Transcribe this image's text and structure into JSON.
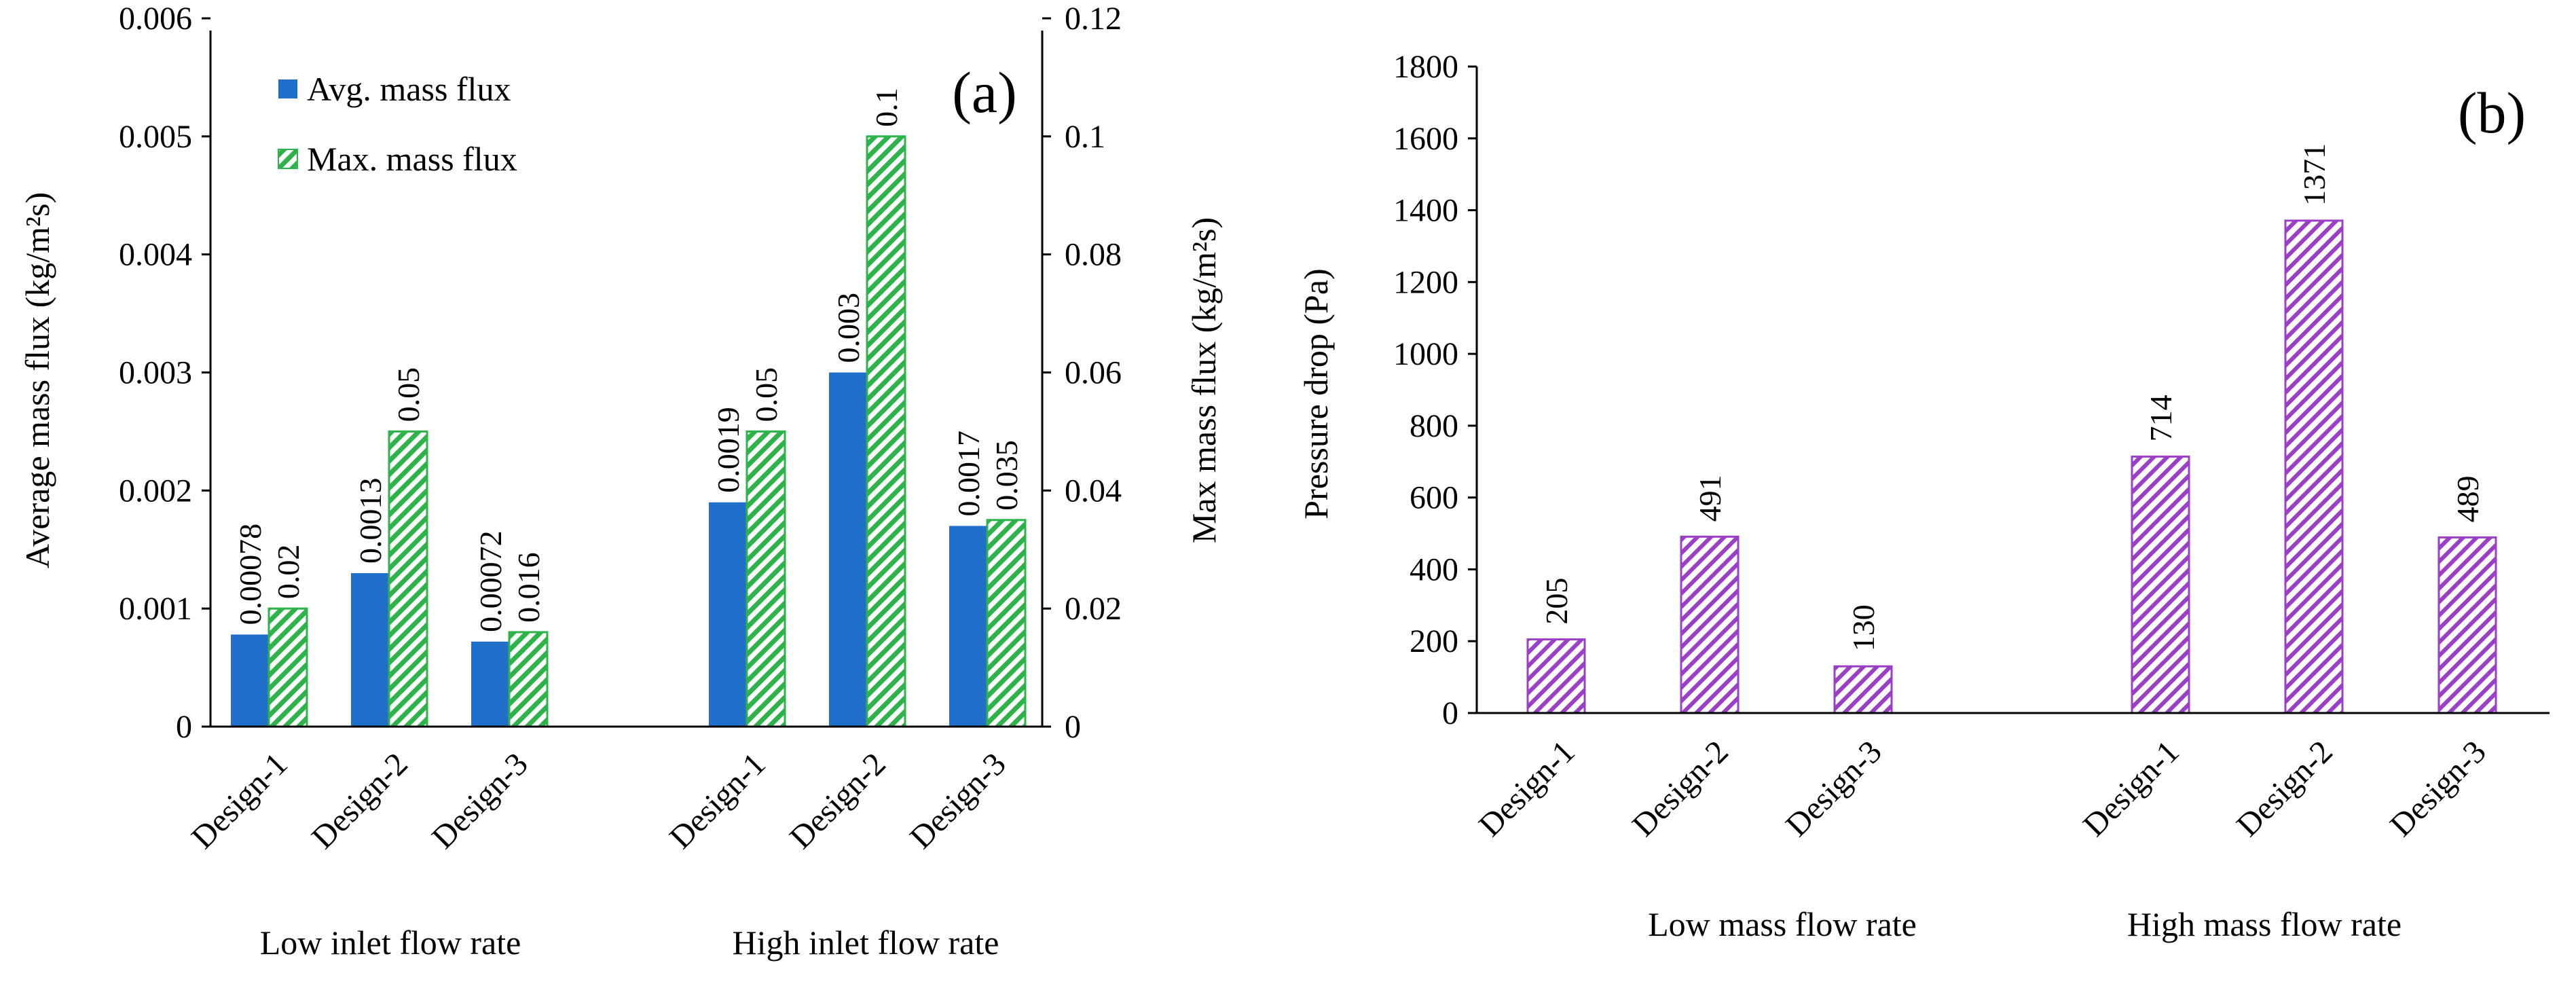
{
  "chart_data": [
    {
      "type": "bar",
      "panel_label": "(a)",
      "ylabel": "Average mass flux (kg/m²s)",
      "ylabel_right": "Max mass flux (kg/m²s)",
      "ylim": [
        0,
        0.006
      ],
      "yticks": [
        "0",
        "0.001",
        "0.002",
        "0.003",
        "0.004",
        "0.005",
        "0.006"
      ],
      "ylim_right": [
        0,
        0.12
      ],
      "yticks_right": [
        "0",
        "0.02",
        "0.04",
        "0.06",
        "0.08",
        "0.1",
        "0.12"
      ],
      "groups": [
        {
          "label": "Low inlet flow rate",
          "categories": [
            "Design-1",
            "Design-2",
            "Design-3"
          ]
        },
        {
          "label": "High inlet flow rate",
          "categories": [
            "Design-1",
            "Design-2",
            "Design-3"
          ]
        }
      ],
      "series": [
        {
          "name": "Avg. mass flux",
          "axis": "left",
          "color": "#1f6fcb",
          "values": [
            0.00078,
            0.0013,
            0.00072,
            0.0019,
            0.003,
            0.0017
          ],
          "labels": [
            "0.00078",
            "0.0013",
            "0.00072",
            "0.0019",
            "0.003",
            "0.0017"
          ]
        },
        {
          "name": "Max. mass flux",
          "axis": "right",
          "color": "#2db34a",
          "pattern": "hatched",
          "values": [
            0.02,
            0.05,
            0.016,
            0.05,
            0.1,
            0.035
          ],
          "labels": [
            "0.02",
            "0.05",
            "0.016",
            "0.05",
            "0.1",
            "0.035"
          ]
        }
      ],
      "legend_position": "top-left"
    },
    {
      "type": "bar",
      "panel_label": "(b)",
      "ylabel": "Pressure drop (Pa)",
      "ylim": [
        0,
        1800
      ],
      "yticks": [
        "0",
        "200",
        "400",
        "600",
        "800",
        "1000",
        "1200",
        "1400",
        "1600",
        "1800"
      ],
      "groups": [
        {
          "label": "Low mass flow rate",
          "categories": [
            "Design-1",
            "Design-2",
            "Design-3"
          ]
        },
        {
          "label": "High mass flow rate",
          "categories": [
            "Design-1",
            "Design-2",
            "Design-3"
          ]
        }
      ],
      "series": [
        {
          "name": "Pressure drop",
          "color": "#9b3fc7",
          "pattern": "hatched",
          "values": [
            205,
            491,
            130,
            714,
            1371,
            489
          ],
          "labels": [
            "205",
            "491",
            "130",
            "714",
            "1371",
            "489"
          ]
        }
      ]
    }
  ]
}
